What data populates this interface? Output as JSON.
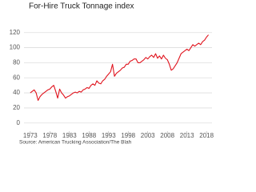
{
  "chart_data": {
    "type": "line",
    "title": "For-Hire Truck Tonnage index",
    "source": "Source: American Trucking Association/The Blah",
    "x": [
      1973,
      1973.5,
      1974,
      1974.5,
      1975,
      1975.5,
      1976,
      1976.5,
      1977,
      1977.5,
      1978,
      1978.5,
      1979,
      1979.5,
      1980,
      1980.5,
      1981,
      1981.5,
      1982,
      1982.5,
      1983,
      1983.5,
      1984,
      1984.5,
      1985,
      1985.5,
      1986,
      1986.5,
      1987,
      1987.5,
      1988,
      1988.5,
      1989,
      1989.5,
      1990,
      1990.5,
      1991,
      1991.5,
      1992,
      1992.5,
      1993,
      1993.5,
      1994,
      1994.5,
      1995,
      1995.5,
      1996,
      1996.5,
      1997,
      1997.5,
      1998,
      1998.5,
      1999,
      1999.5,
      2000,
      2000.5,
      2001,
      2001.5,
      2002,
      2002.5,
      2003,
      2003.5,
      2004,
      2004.5,
      2005,
      2005.5,
      2006,
      2006.5,
      2007,
      2007.5,
      2008,
      2008.5,
      2009,
      2009.5,
      2010,
      2010.5,
      2011,
      2011.5,
      2012,
      2012.5,
      2013,
      2013.5,
      2014,
      2014.5,
      2015,
      2015.5,
      2016,
      2016.5,
      2017,
      2017.5,
      2018,
      2018.5
    ],
    "values": [
      40,
      42,
      44,
      40,
      30,
      35,
      38,
      40,
      42,
      44,
      45,
      48,
      50,
      42,
      33,
      45,
      40,
      37,
      33,
      35,
      36,
      38,
      40,
      41,
      40,
      42,
      41,
      44,
      45,
      47,
      46,
      50,
      52,
      50,
      56,
      53,
      52,
      56,
      58,
      62,
      65,
      68,
      78,
      62,
      66,
      68,
      70,
      73,
      74,
      78,
      78,
      82,
      83,
      85,
      85,
      80,
      80,
      82,
      84,
      87,
      85,
      88,
      90,
      87,
      92,
      86,
      89,
      85,
      90,
      86,
      84,
      78,
      70,
      72,
      76,
      80,
      86,
      92,
      94,
      96,
      98,
      96,
      100,
      104,
      102,
      104,
      106,
      104,
      108,
      110,
      114,
      117
    ],
    "color": "#e0141e",
    "xlim": [
      1971.4,
      2019.4
    ],
    "xticks": [
      1973,
      1978,
      1983,
      1988,
      1993,
      1998,
      2003,
      2008,
      2013,
      2018
    ],
    "ylim": [
      -13,
      142
    ],
    "yticks": [
      0,
      20,
      40,
      60,
      80,
      100,
      120
    ],
    "grid": true
  }
}
